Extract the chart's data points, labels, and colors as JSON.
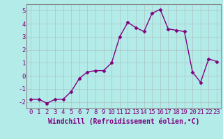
{
  "x": [
    0,
    1,
    2,
    3,
    4,
    5,
    6,
    7,
    8,
    9,
    10,
    11,
    12,
    13,
    14,
    15,
    16,
    17,
    18,
    19,
    20,
    21,
    22,
    23
  ],
  "y": [
    -1.8,
    -1.8,
    -2.1,
    -1.8,
    -1.8,
    -1.2,
    -0.2,
    0.3,
    0.4,
    0.4,
    1.0,
    3.0,
    4.1,
    3.7,
    3.4,
    4.8,
    5.1,
    3.6,
    3.5,
    3.4,
    0.3,
    -0.5,
    1.3,
    1.1
  ],
  "line_color": "#800080",
  "marker": "D",
  "marker_size": 2.5,
  "bg_color": "#b2ebe8",
  "grid_color": "#c8e8e5",
  "xlabel": "Windchill (Refroidissement éolien,°C)",
  "ylim": [
    -2.5,
    5.5
  ],
  "xlim": [
    -0.5,
    23.5
  ],
  "xlabel_fontsize": 7,
  "tick_fontsize": 6.5,
  "yticks": [
    -2,
    -1,
    0,
    1,
    2,
    3,
    4,
    5
  ],
  "xtick_labels": [
    "0",
    "1",
    "2",
    "3",
    "4",
    "5",
    "6",
    "7",
    "8",
    "9",
    "10",
    "11",
    "12",
    "13",
    "14",
    "15",
    "16",
    "17",
    "18",
    "19",
    "20",
    "21",
    "22",
    "23"
  ],
  "spine_color": "#888888"
}
